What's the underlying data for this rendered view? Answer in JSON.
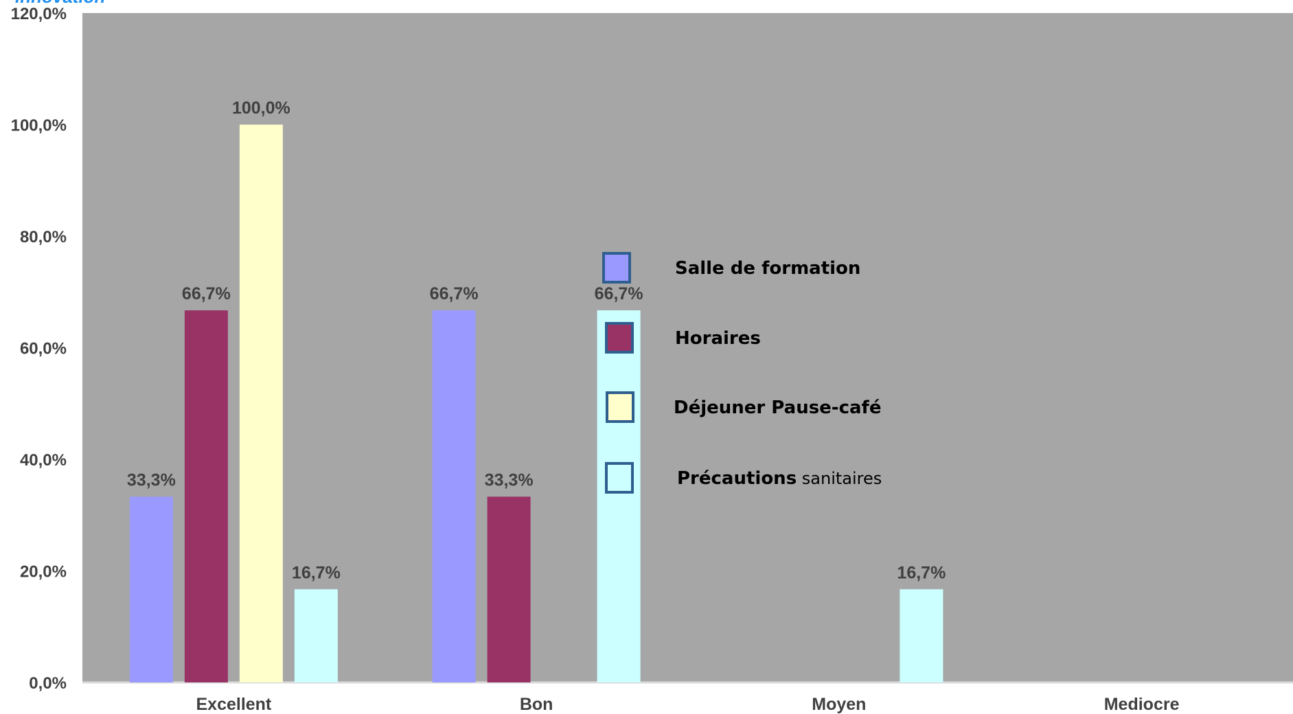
{
  "brand_text": "innovation",
  "colors": {
    "plot_background": "#a6a6a6",
    "axis": "#d9d9d9",
    "legend_border": "#2f5f8f"
  },
  "chart_data": {
    "type": "bar",
    "categories": [
      "Excellent",
      "Bon",
      "Moyen",
      "Mediocre"
    ],
    "ylim": [
      0,
      120
    ],
    "y_ticks": [
      "0,0%",
      "20,0%",
      "40,0%",
      "60,0%",
      "80,0%",
      "100,0%",
      "120,0%"
    ],
    "grid": false,
    "legend_position": "center",
    "series": [
      {
        "name": "Salle de formation",
        "name_main": "Salle de formation",
        "name_light": "",
        "color": "#9999ff",
        "values": [
          33.3,
          66.7,
          null,
          null
        ],
        "labels": [
          "33,3%",
          "66,7%",
          "",
          ""
        ]
      },
      {
        "name": "Horaires",
        "name_main": "Horaires",
        "name_light": "",
        "color": "#993366",
        "values": [
          66.7,
          33.3,
          null,
          null
        ],
        "labels": [
          "66,7%",
          "33,3%",
          "",
          ""
        ]
      },
      {
        "name": "Déjeuner Pause-café",
        "name_main": "Déjeuner Pause-café",
        "name_light": "",
        "color": "#ffffcc",
        "values": [
          100.0,
          null,
          null,
          null
        ],
        "labels": [
          "100,0%",
          "",
          "",
          ""
        ]
      },
      {
        "name": "Précautions sanitaires",
        "name_main": "Précautions",
        "name_light": "sanitaires",
        "color": "#ccffff",
        "values": [
          16.7,
          66.7,
          16.7,
          null
        ],
        "labels": [
          "16,7%",
          "66,7%",
          "16,7%",
          ""
        ]
      }
    ]
  }
}
